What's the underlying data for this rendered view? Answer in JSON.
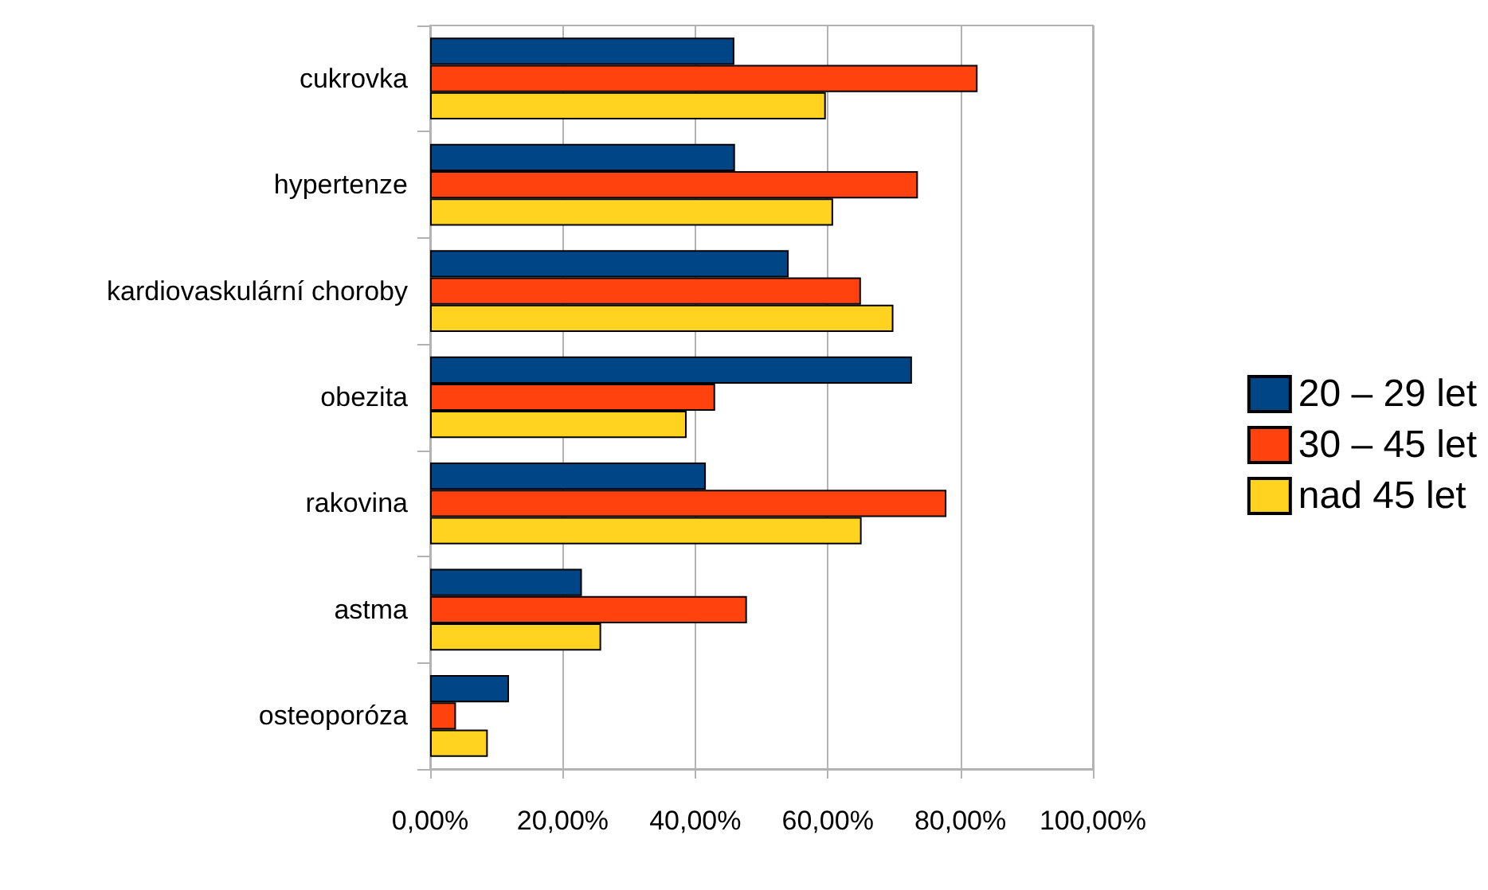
{
  "chart_data": {
    "type": "bar",
    "orientation": "horizontal",
    "categories": [
      "cukrovka",
      "hypertenze",
      "kardiovaskulární choroby",
      "obezita",
      "rakovina",
      "astma",
      "osteoporóza"
    ],
    "series": [
      {
        "name": "20 – 29 let",
        "color": "#004586",
        "values": [
          45.9,
          46,
          54.1,
          72.7,
          41.6,
          22.9,
          11.9
        ]
      },
      {
        "name": "30 – 45 let",
        "color": "#ff420e",
        "values": [
          82.6,
          73.6,
          65,
          43,
          77.9,
          47.8,
          3.9
        ]
      },
      {
        "name": "nad 45 let",
        "color": "#ffd320",
        "values": [
          59.7,
          60.8,
          69.9,
          38.7,
          65.1,
          25.8,
          8.7
        ]
      }
    ],
    "xlim": [
      0,
      100
    ],
    "xticks": [
      {
        "value": 0,
        "label": "0,00%"
      },
      {
        "value": 20,
        "label": "20,00%"
      },
      {
        "value": 40,
        "label": "40,00%"
      },
      {
        "value": 60,
        "label": "60,00%"
      },
      {
        "value": 80,
        "label": "80,00%"
      },
      {
        "value": 100,
        "label": "100,00%"
      }
    ],
    "grid": "x",
    "legend": "right"
  }
}
